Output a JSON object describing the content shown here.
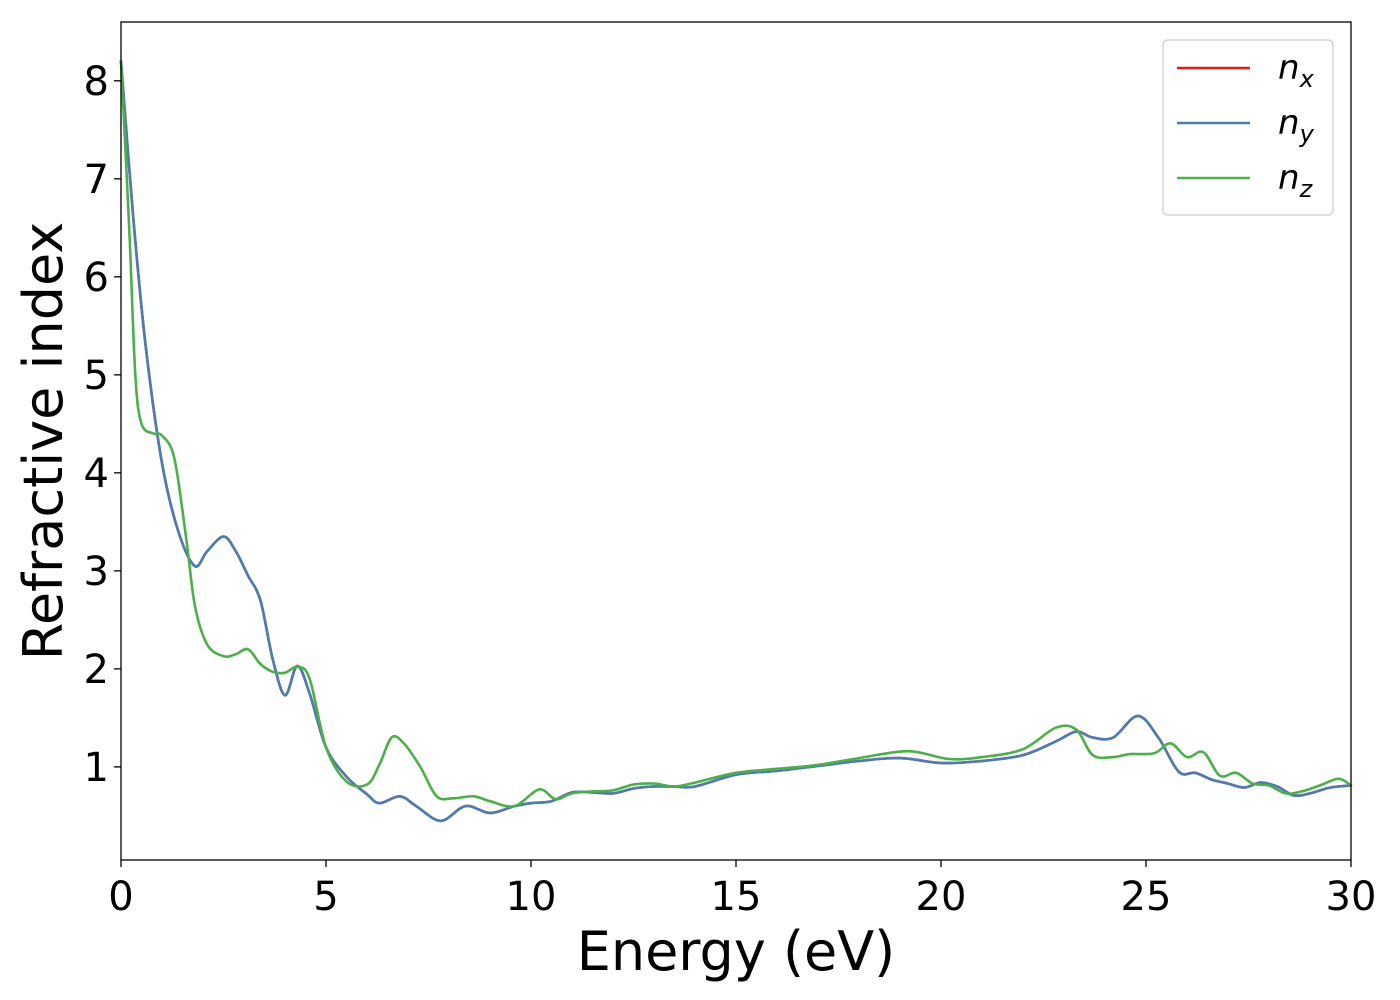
{
  "chart_data": {
    "type": "line",
    "xlabel": "Energy (eV)",
    "ylabel": "Refractive index",
    "xlim": [
      0,
      30
    ],
    "ylim": [
      0.05,
      8.6
    ],
    "xticks": [
      0,
      5,
      10,
      15,
      20,
      25,
      30
    ],
    "yticks": [
      1,
      2,
      3,
      4,
      5,
      6,
      7,
      8
    ],
    "grid": false,
    "legend_position": "top-right",
    "series": [
      {
        "name": "n_x",
        "label_base": "n",
        "label_sub": "x",
        "color": "#e41a1c",
        "x": [
          0,
          0.3,
          0.6,
          1.0,
          1.4,
          1.8,
          2.1,
          2.5,
          2.8,
          3.1,
          3.4,
          3.7,
          4.0,
          4.3,
          4.6,
          5.0,
          5.5,
          6.0,
          6.3,
          6.8,
          7.2,
          7.8,
          8.4,
          9.0,
          9.6,
          10.0,
          10.5,
          11.0,
          11.5,
          12.0,
          12.5,
          13.0,
          13.5,
          14.0,
          15.0,
          16.0,
          17.0,
          18.0,
          19.0,
          20.0,
          21.0,
          22.0,
          22.8,
          23.3,
          23.7,
          24.2,
          24.8,
          25.3,
          25.8,
          26.2,
          26.6,
          27.0,
          27.4,
          27.8,
          28.2,
          28.6,
          29.0,
          29.5,
          30.0
        ],
        "y": [
          8.2,
          6.6,
          5.3,
          4.1,
          3.4,
          3.05,
          3.2,
          3.35,
          3.2,
          2.95,
          2.7,
          2.1,
          1.73,
          2.03,
          1.75,
          1.2,
          0.9,
          0.72,
          0.63,
          0.7,
          0.6,
          0.45,
          0.6,
          0.53,
          0.6,
          0.63,
          0.65,
          0.74,
          0.74,
          0.73,
          0.78,
          0.8,
          0.8,
          0.8,
          0.92,
          0.96,
          1.01,
          1.06,
          1.09,
          1.04,
          1.06,
          1.12,
          1.26,
          1.36,
          1.3,
          1.3,
          1.52,
          1.3,
          0.95,
          0.94,
          0.87,
          0.83,
          0.79,
          0.84,
          0.8,
          0.71,
          0.73,
          0.79,
          0.81
        ]
      },
      {
        "name": "n_y",
        "label_base": "n",
        "label_sub": "y",
        "color": "#4a7eb3",
        "x": [
          0,
          0.3,
          0.6,
          1.0,
          1.4,
          1.8,
          2.1,
          2.5,
          2.8,
          3.1,
          3.4,
          3.7,
          4.0,
          4.3,
          4.6,
          5.0,
          5.5,
          6.0,
          6.3,
          6.8,
          7.2,
          7.8,
          8.4,
          9.0,
          9.6,
          10.0,
          10.5,
          11.0,
          11.5,
          12.0,
          12.5,
          13.0,
          13.5,
          14.0,
          15.0,
          16.0,
          17.0,
          18.0,
          19.0,
          20.0,
          21.0,
          22.0,
          22.8,
          23.3,
          23.7,
          24.2,
          24.8,
          25.3,
          25.8,
          26.2,
          26.6,
          27.0,
          27.4,
          27.8,
          28.2,
          28.6,
          29.0,
          29.5,
          30.0
        ],
        "y": [
          8.2,
          6.6,
          5.3,
          4.1,
          3.4,
          3.05,
          3.2,
          3.35,
          3.2,
          2.95,
          2.7,
          2.1,
          1.73,
          2.03,
          1.75,
          1.2,
          0.9,
          0.72,
          0.63,
          0.7,
          0.6,
          0.45,
          0.6,
          0.53,
          0.6,
          0.63,
          0.65,
          0.74,
          0.74,
          0.73,
          0.78,
          0.8,
          0.8,
          0.8,
          0.92,
          0.96,
          1.01,
          1.06,
          1.09,
          1.04,
          1.06,
          1.12,
          1.26,
          1.36,
          1.3,
          1.3,
          1.52,
          1.3,
          0.95,
          0.94,
          0.87,
          0.83,
          0.79,
          0.84,
          0.8,
          0.71,
          0.73,
          0.79,
          0.81
        ]
      },
      {
        "name": "n_z",
        "label_base": "n",
        "label_sub": "z",
        "color": "#4daf4a",
        "x": [
          0,
          0.2,
          0.35,
          0.5,
          0.8,
          1.0,
          1.3,
          1.6,
          1.8,
          2.1,
          2.5,
          2.8,
          3.1,
          3.4,
          3.7,
          4.0,
          4.3,
          4.6,
          5.0,
          5.5,
          6.0,
          6.3,
          6.6,
          6.9,
          7.3,
          7.7,
          8.1,
          8.6,
          9.0,
          9.6,
          10.2,
          10.6,
          11.0,
          11.5,
          12.0,
          12.5,
          13.0,
          13.5,
          14.0,
          15.0,
          16.0,
          17.0,
          18.0,
          19.2,
          20.2,
          21.0,
          22.0,
          22.8,
          23.3,
          23.7,
          24.2,
          24.6,
          25.2,
          25.6,
          26.0,
          26.4,
          26.8,
          27.2,
          27.6,
          28.0,
          28.4,
          28.8,
          29.3,
          29.7,
          30.0
        ],
        "y": [
          8.2,
          6.5,
          5.0,
          4.5,
          4.4,
          4.38,
          4.15,
          3.3,
          2.65,
          2.25,
          2.13,
          2.15,
          2.2,
          2.05,
          1.97,
          1.96,
          2.02,
          1.9,
          1.2,
          0.85,
          0.82,
          1.02,
          1.3,
          1.24,
          1.0,
          0.7,
          0.68,
          0.7,
          0.65,
          0.6,
          0.77,
          0.67,
          0.73,
          0.75,
          0.76,
          0.82,
          0.83,
          0.8,
          0.84,
          0.94,
          0.98,
          1.02,
          1.09,
          1.16,
          1.08,
          1.1,
          1.18,
          1.4,
          1.38,
          1.12,
          1.1,
          1.13,
          1.14,
          1.24,
          1.1,
          1.15,
          0.91,
          0.94,
          0.83,
          0.81,
          0.73,
          0.75,
          0.82,
          0.88,
          0.81
        ]
      }
    ]
  }
}
